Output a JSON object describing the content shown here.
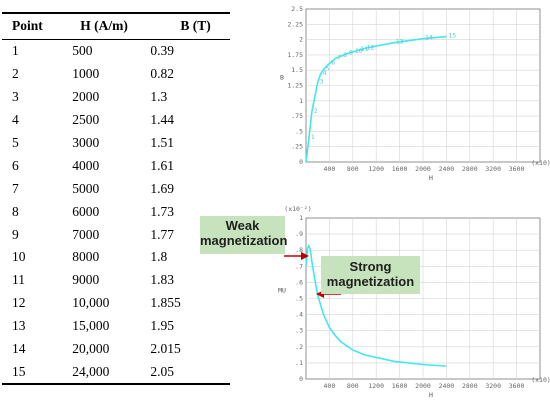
{
  "table": {
    "headers": [
      "Point",
      "H (A/m)",
      "B (T)"
    ],
    "rows": [
      [
        "1",
        "500",
        "0.39"
      ],
      [
        "2",
        "1000",
        "0.82"
      ],
      [
        "3",
        "2000",
        "1.3"
      ],
      [
        "4",
        "2500",
        "1.44"
      ],
      [
        "5",
        "3000",
        "1.51"
      ],
      [
        "6",
        "4000",
        "1.61"
      ],
      [
        "7",
        "5000",
        "1.69"
      ],
      [
        "8",
        "6000",
        "1.73"
      ],
      [
        "9",
        "7000",
        "1.77"
      ],
      [
        "10",
        "8000",
        "1.8"
      ],
      [
        "11",
        "9000",
        "1.83"
      ],
      [
        "12",
        "10,000",
        "1.855"
      ],
      [
        "13",
        "15,000",
        "1.95"
      ],
      [
        "14",
        "20,000",
        "2.015"
      ],
      [
        "15",
        "24,000",
        "2.05"
      ]
    ]
  },
  "annotations": {
    "weak": "Weak magnetization",
    "strong": "Strong magnetization",
    "arrow_color": "#c00000",
    "box_color": "#c6e3bd"
  },
  "chart_data": [
    {
      "type": "line",
      "xlabel": "H",
      "ylabel": "B",
      "x_multiplier": "(x10)",
      "xlim": [
        0,
        4000
      ],
      "ylim": [
        0,
        2.5
      ],
      "xticks": [
        "400",
        "800",
        "1200",
        "1600",
        "2000",
        "2400",
        "2800",
        "3200",
        "3600"
      ],
      "yticks": [
        "0",
        ".25",
        ".5",
        ".75",
        "1",
        "1.25",
        "1.5",
        "1.75",
        "2",
        "2.25",
        "2.5"
      ],
      "grid": true,
      "color": "#40e8f0",
      "series": [
        {
          "x": [
            0,
            50,
            100,
            200,
            250,
            300,
            400,
            500,
            600,
            700,
            800,
            900,
            1000,
            1500,
            2000,
            2400
          ],
          "values": [
            0,
            0.39,
            0.82,
            1.3,
            1.44,
            1.51,
            1.61,
            1.69,
            1.73,
            1.77,
            1.8,
            1.83,
            1.855,
            1.95,
            2.015,
            2.05
          ]
        }
      ],
      "point_labels": [
        "1",
        "2",
        "3",
        "4",
        "5",
        "6",
        "7",
        "8",
        "9",
        "10",
        "11",
        "12",
        "13",
        "14",
        "15"
      ]
    },
    {
      "type": "line",
      "xlabel": "H",
      "ylabel": "MU",
      "x_multiplier": "(x10)",
      "y_multiplier": "(x10⁻²)",
      "xlim": [
        0,
        4000
      ],
      "ylim": [
        0,
        1.0
      ],
      "xticks": [
        "400",
        "800",
        "1200",
        "1600",
        "2000",
        "2400",
        "2800",
        "3200",
        "3600"
      ],
      "yticks": [
        "0",
        ".1",
        ".2",
        ".3",
        ".4",
        ".5",
        ".6",
        ".7",
        ".8",
        ".9",
        "1"
      ],
      "grid": true,
      "color": "#40e8f0",
      "series": [
        {
          "x": [
            0,
            25,
            50,
            75,
            100,
            150,
            200,
            250,
            300,
            400,
            500,
            600,
            800,
            1000,
            1500,
            2000,
            2400
          ],
          "values": [
            0.7,
            0.81,
            0.83,
            0.8,
            0.73,
            0.62,
            0.52,
            0.46,
            0.4,
            0.32,
            0.27,
            0.23,
            0.18,
            0.15,
            0.11,
            0.09,
            0.08
          ]
        }
      ]
    }
  ]
}
